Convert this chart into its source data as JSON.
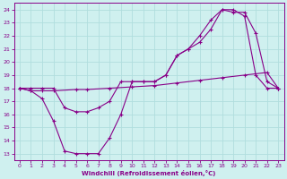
{
  "xlabel": "Windchill (Refroidissement éolien,°C)",
  "background_color": "#cff0ef",
  "grid_color": "#b0dede",
  "line_color": "#880088",
  "xlim": [
    -0.5,
    23.5
  ],
  "ylim": [
    12.5,
    24.5
  ],
  "yticks": [
    13,
    14,
    15,
    16,
    17,
    18,
    19,
    20,
    21,
    22,
    23,
    24
  ],
  "xticks": [
    0,
    1,
    2,
    3,
    4,
    5,
    6,
    7,
    8,
    9,
    10,
    11,
    12,
    13,
    14,
    15,
    16,
    17,
    18,
    19,
    20,
    21,
    22,
    23
  ],
  "series1_x": [
    0,
    1,
    2,
    3,
    4,
    5,
    6,
    7,
    8,
    9,
    10,
    11,
    12,
    13,
    14,
    15,
    16,
    17,
    18,
    19,
    20,
    21,
    22,
    23
  ],
  "series1_y": [
    18.0,
    17.8,
    17.2,
    15.5,
    13.2,
    13.0,
    13.0,
    13.0,
    14.2,
    16.0,
    18.5,
    18.5,
    18.5,
    19.0,
    20.5,
    21.0,
    21.5,
    22.5,
    24.0,
    24.0,
    23.5,
    19.0,
    18.0,
    18.0
  ],
  "series2_x": [
    0,
    1,
    2,
    3,
    4,
    5,
    6,
    7,
    8,
    9,
    10,
    11,
    12,
    13,
    14,
    15,
    16,
    17,
    18,
    19,
    20,
    21,
    22,
    23
  ],
  "series2_y": [
    18.0,
    18.0,
    18.0,
    18.0,
    16.5,
    16.2,
    16.2,
    16.5,
    17.0,
    18.5,
    18.5,
    18.5,
    18.5,
    19.0,
    20.5,
    21.0,
    22.0,
    23.2,
    24.0,
    23.8,
    23.8,
    22.2,
    18.5,
    18.0
  ],
  "series3_x": [
    0,
    1,
    2,
    3,
    5,
    6,
    8,
    10,
    12,
    14,
    16,
    18,
    20,
    22,
    23
  ],
  "series3_y": [
    18.0,
    17.8,
    17.8,
    17.8,
    17.9,
    17.9,
    18.0,
    18.1,
    18.2,
    18.4,
    18.6,
    18.8,
    19.0,
    19.2,
    18.0
  ]
}
